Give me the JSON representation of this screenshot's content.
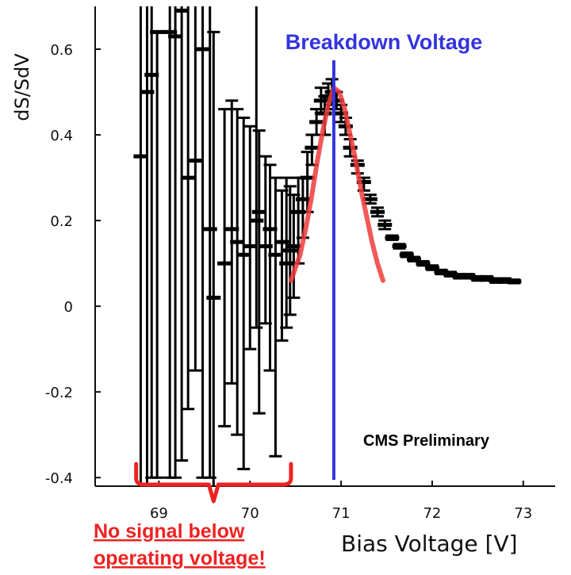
{
  "chart_data": {
    "type": "scatter",
    "title": "",
    "xlabel": "Bias Voltage [V]",
    "ylabel": "dS/SdV",
    "xlim": [
      68.3,
      73.35
    ],
    "ylim": [
      -0.42,
      0.7
    ],
    "x_ticks": [
      69,
      70,
      71,
      72,
      73
    ],
    "y_ticks": [
      -0.4,
      -0.2,
      0,
      0.2,
      0.4,
      0.6
    ],
    "y_tick_labels": [
      "-0.4",
      "-0.2",
      "0",
      "0.2",
      "0.4",
      "0.6"
    ],
    "grid": false,
    "series": [
      {
        "type": "errorbar",
        "color": "#000000",
        "points": [
          {
            "x": 68.8,
            "y": 0.35,
            "lo": -0.42,
            "hi": 0.7
          },
          {
            "x": 68.87,
            "y": 0.5,
            "lo": -0.42,
            "hi": 0.7
          },
          {
            "x": 68.92,
            "y": 0.54,
            "lo": -0.4,
            "hi": 0.7
          },
          {
            "x": 68.98,
            "y": 0.64,
            "lo": -0.4,
            "hi": 0.64
          },
          {
            "x": 69.12,
            "y": 0.64,
            "lo": -0.4,
            "hi": 0.7
          },
          {
            "x": 69.18,
            "y": 0.63,
            "lo": -0.4,
            "hi": 0.7
          },
          {
            "x": 69.25,
            "y": 0.69,
            "lo": -0.36,
            "hi": 0.7
          },
          {
            "x": 69.32,
            "y": 0.3,
            "lo": -0.24,
            "hi": 0.7
          },
          {
            "x": 69.4,
            "y": 0.34,
            "lo": -0.15,
            "hi": 0.7
          },
          {
            "x": 69.48,
            "y": 0.6,
            "lo": -0.4,
            "hi": 0.7
          },
          {
            "x": 69.56,
            "y": 0.18,
            "lo": -0.4,
            "hi": 0.7
          },
          {
            "x": 69.6,
            "y": 0.02,
            "lo": -0.42,
            "hi": 0.64
          },
          {
            "x": 69.72,
            "y": 0.1,
            "lo": -0.28,
            "hi": 0.46
          },
          {
            "x": 69.8,
            "y": 0.18,
            "lo": -0.18,
            "hi": 0.48
          },
          {
            "x": 69.86,
            "y": 0.15,
            "lo": -0.3,
            "hi": 0.46
          },
          {
            "x": 69.93,
            "y": 0.12,
            "lo": -0.38,
            "hi": 0.44
          },
          {
            "x": 70.0,
            "y": 0.14,
            "lo": -0.1,
            "hi": 0.42
          },
          {
            "x": 70.07,
            "y": 0.2,
            "lo": -0.05,
            "hi": 0.7
          },
          {
            "x": 70.1,
            "y": 0.22,
            "lo": -0.25,
            "hi": 0.41
          },
          {
            "x": 70.17,
            "y": 0.14,
            "lo": -0.04,
            "hi": 0.35
          },
          {
            "x": 70.22,
            "y": 0.18,
            "lo": -0.15,
            "hi": 0.33
          },
          {
            "x": 70.28,
            "y": 0.12,
            "lo": -0.35,
            "hi": 0.3
          },
          {
            "x": 70.35,
            "y": 0.15,
            "lo": -0.08,
            "hi": 0.27
          },
          {
            "x": 70.4,
            "y": 0.1,
            "lo": -0.05,
            "hi": 0.3
          },
          {
            "x": 70.44,
            "y": 0.13,
            "lo": -0.02,
            "hi": 0.28
          },
          {
            "x": 70.48,
            "y": 0.14,
            "lo": 0.02,
            "hi": 0.26
          },
          {
            "x": 70.53,
            "y": 0.22,
            "lo": 0.1,
            "hi": 0.3
          },
          {
            "x": 70.58,
            "y": 0.25,
            "lo": 0.16,
            "hi": 0.3
          },
          {
            "x": 70.63,
            "y": 0.3,
            "lo": 0.22,
            "hi": 0.36
          },
          {
            "x": 70.68,
            "y": 0.37,
            "lo": 0.33,
            "hi": 0.4
          },
          {
            "x": 70.73,
            "y": 0.43,
            "lo": 0.4,
            "hi": 0.46
          },
          {
            "x": 70.78,
            "y": 0.48,
            "lo": 0.45,
            "hi": 0.51
          },
          {
            "x": 70.82,
            "y": 0.45,
            "lo": 0.4,
            "hi": 0.49
          },
          {
            "x": 70.86,
            "y": 0.49,
            "lo": 0.46,
            "hi": 0.52
          },
          {
            "x": 70.9,
            "y": 0.5,
            "lo": 0.47,
            "hi": 0.53
          },
          {
            "x": 70.95,
            "y": 0.48,
            "lo": 0.46,
            "hi": 0.5
          },
          {
            "x": 71.0,
            "y": 0.45,
            "lo": 0.43,
            "hi": 0.47
          },
          {
            "x": 71.05,
            "y": 0.42,
            "lo": 0.4,
            "hi": 0.44
          },
          {
            "x": 71.1,
            "y": 0.37,
            "lo": 0.35,
            "hi": 0.39
          },
          {
            "x": 71.18,
            "y": 0.33,
            "lo": 0.31,
            "hi": 0.34
          },
          {
            "x": 71.25,
            "y": 0.29,
            "lo": 0.27,
            "hi": 0.3
          },
          {
            "x": 71.32,
            "y": 0.25,
            "lo": 0.24,
            "hi": 0.26
          },
          {
            "x": 71.4,
            "y": 0.22,
            "lo": 0.21,
            "hi": 0.23
          },
          {
            "x": 71.48,
            "y": 0.19,
            "lo": 0.18,
            "hi": 0.2
          },
          {
            "x": 71.56,
            "y": 0.16,
            "lo": 0.155,
            "hi": 0.165
          },
          {
            "x": 71.64,
            "y": 0.14,
            "lo": 0.135,
            "hi": 0.145
          },
          {
            "x": 71.72,
            "y": 0.12,
            "lo": 0.115,
            "hi": 0.125
          },
          {
            "x": 71.8,
            "y": 0.11,
            "lo": 0.105,
            "hi": 0.115
          },
          {
            "x": 71.9,
            "y": 0.1,
            "lo": 0.095,
            "hi": 0.105
          },
          {
            "x": 72.0,
            "y": 0.09,
            "lo": 0.085,
            "hi": 0.095
          },
          {
            "x": 72.1,
            "y": 0.08,
            "lo": 0.075,
            "hi": 0.085
          },
          {
            "x": 72.2,
            "y": 0.075,
            "lo": 0.07,
            "hi": 0.08
          },
          {
            "x": 72.3,
            "y": 0.07,
            "lo": 0.065,
            "hi": 0.075
          },
          {
            "x": 72.4,
            "y": 0.07,
            "lo": 0.065,
            "hi": 0.075
          },
          {
            "x": 72.5,
            "y": 0.065,
            "lo": 0.06,
            "hi": 0.07
          },
          {
            "x": 72.6,
            "y": 0.065,
            "lo": 0.06,
            "hi": 0.07
          },
          {
            "x": 72.7,
            "y": 0.06,
            "lo": 0.055,
            "hi": 0.065
          },
          {
            "x": 72.8,
            "y": 0.06,
            "lo": 0.055,
            "hi": 0.065
          },
          {
            "x": 72.9,
            "y": 0.058,
            "lo": 0.054,
            "hi": 0.062
          }
        ]
      },
      {
        "type": "line",
        "color": "#f03c3c",
        "points": [
          [
            70.45,
            0.06
          ],
          [
            70.55,
            0.12
          ],
          [
            70.62,
            0.19
          ],
          [
            70.68,
            0.26
          ],
          [
            70.74,
            0.34
          ],
          [
            70.8,
            0.41
          ],
          [
            70.86,
            0.47
          ],
          [
            70.92,
            0.51
          ],
          [
            70.98,
            0.5
          ],
          [
            71.04,
            0.46
          ],
          [
            71.1,
            0.4
          ],
          [
            71.16,
            0.34
          ],
          [
            71.22,
            0.27
          ],
          [
            71.28,
            0.21
          ],
          [
            71.34,
            0.15
          ],
          [
            71.4,
            0.1
          ],
          [
            71.46,
            0.06
          ]
        ]
      }
    ],
    "annotations": {
      "breakdown_voltage": {
        "x": 70.92,
        "label": "Breakdown Voltage",
        "color": "#3333e0"
      },
      "preliminary_label": "CMS Preliminary",
      "no_signal_note": {
        "lines": [
          "No signal below",
          "operating voltage!"
        ],
        "color": "#ee2222",
        "x_from": 68.75,
        "x_to": 70.45
      }
    }
  }
}
